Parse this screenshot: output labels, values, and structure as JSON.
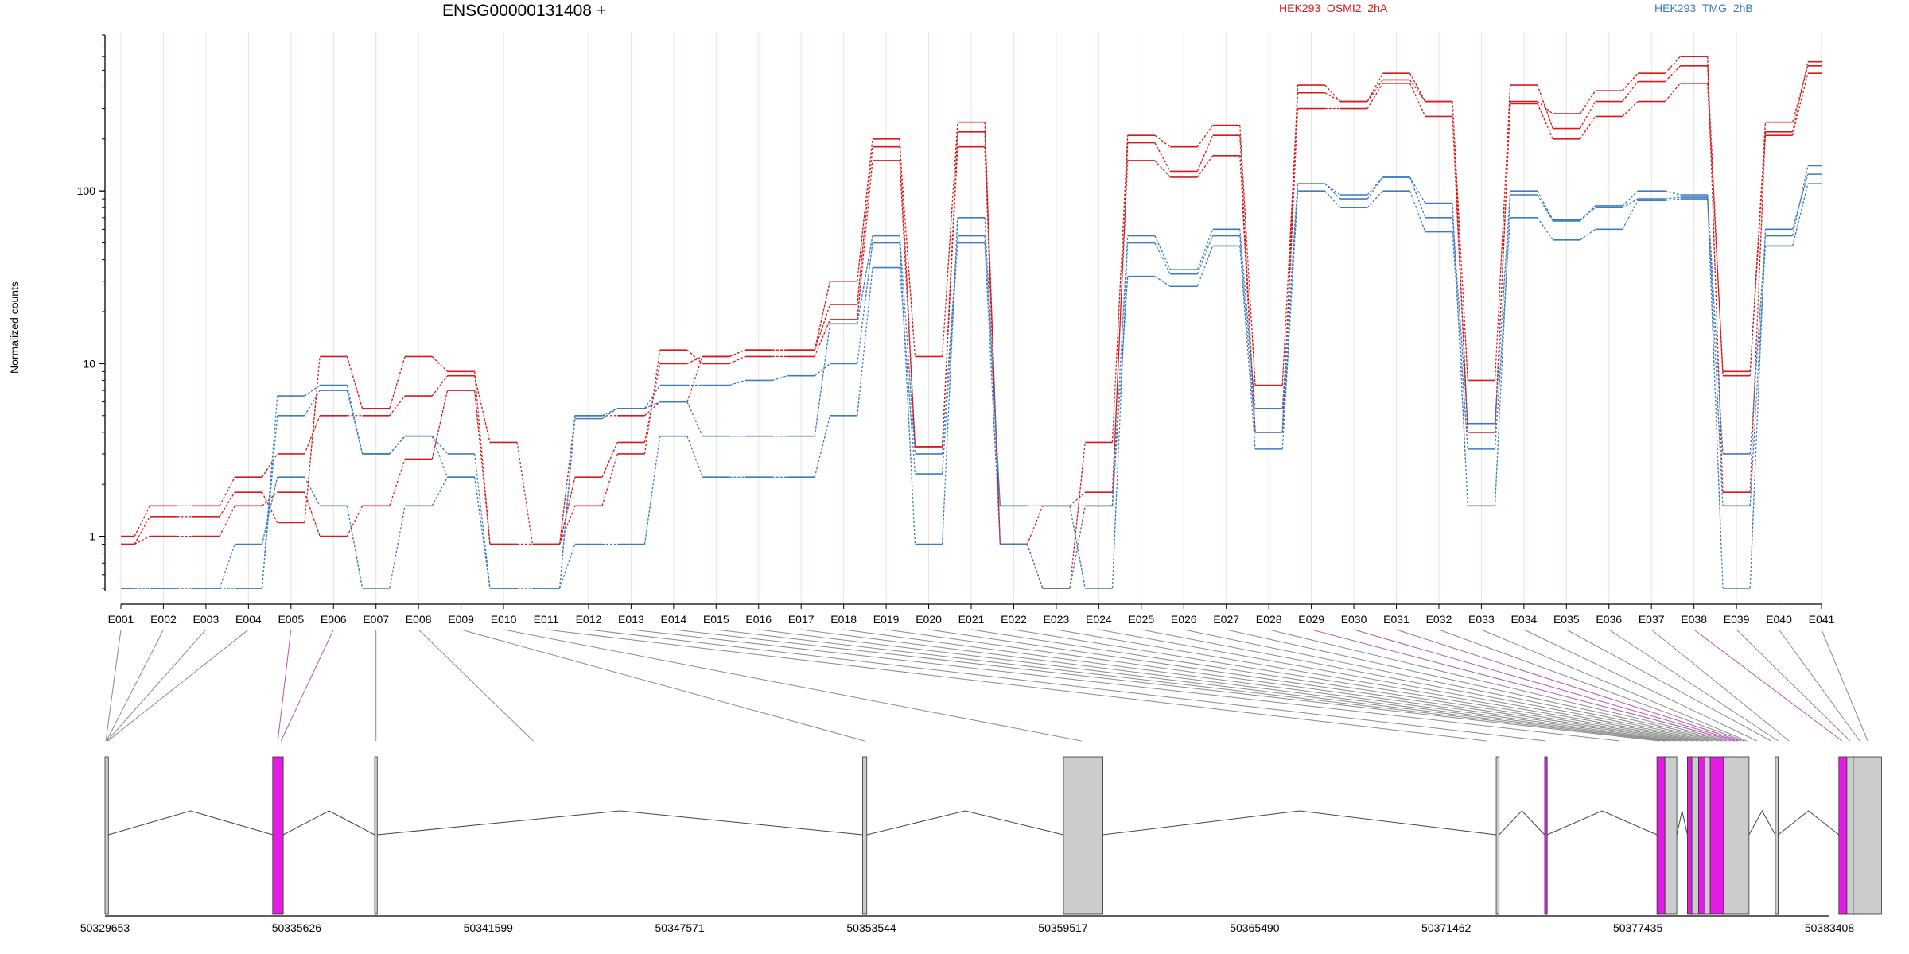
{
  "chart_data": {
    "type": "line",
    "title": "ENSG00000131408 +",
    "ylabel": "Normalized counts",
    "yscale": "log",
    "ylim": [
      0.5,
      800
    ],
    "yticks": [
      1,
      10,
      100
    ],
    "legend_position": "top",
    "categories": [
      "E001",
      "E002",
      "E003",
      "E004",
      "E005",
      "E006",
      "E007",
      "E008",
      "E009",
      "E010",
      "E011",
      "E012",
      "E013",
      "E014",
      "E015",
      "E016",
      "E017",
      "E018",
      "E019",
      "E020",
      "E021",
      "E022",
      "E023",
      "E024",
      "E025",
      "E026",
      "E027",
      "E028",
      "E029",
      "E030",
      "E031",
      "E032",
      "E033",
      "E034",
      "E035",
      "E036",
      "E037",
      "E038",
      "E039",
      "E040",
      "E041"
    ],
    "series": [
      {
        "name": "HEK293_OSMI2_2hA",
        "color": "#d7191c",
        "values": [
          1.0,
          1.5,
          1.5,
          2.2,
          3.0,
          5.0,
          5.0,
          6.5,
          8.5,
          3.5,
          0.9,
          2.2,
          3.5,
          10,
          11,
          12,
          12,
          22,
          180,
          11,
          250,
          0.9,
          0.5,
          3.5,
          210,
          180,
          240,
          7.5,
          370,
          330,
          480,
          330,
          8.0,
          410,
          230,
          330,
          430,
          530,
          8.5,
          250,
          530
        ]
      },
      {
        "name": "HEK293_OSMI2_2hA",
        "color": "#d7191c",
        "values": [
          0.9,
          1.0,
          1.0,
          1.5,
          1.8,
          1.0,
          1.5,
          2.8,
          7.0,
          0.9,
          0.9,
          1.5,
          3.0,
          12,
          10,
          11,
          11,
          18,
          150,
          3.3,
          180,
          0.9,
          1.5,
          1.8,
          150,
          120,
          160,
          4.0,
          300,
          300,
          420,
          270,
          4.0,
          320,
          200,
          270,
          330,
          420,
          9.0,
          210,
          480
        ]
      },
      {
        "name": "HEK293_OSMI2_2hA",
        "color": "#d7191c",
        "values": [
          0.9,
          1.3,
          1.3,
          1.8,
          1.2,
          11,
          5.5,
          11,
          9.0,
          0.9,
          0.9,
          5.0,
          5.0,
          6.0,
          11,
          12,
          12,
          30,
          200,
          3.3,
          220,
          0.9,
          0.5,
          1.5,
          190,
          130,
          210,
          4.0,
          410,
          330,
          440,
          330,
          4.0,
          330,
          280,
          380,
          480,
          600,
          1.8,
          220,
          560
        ]
      },
      {
        "name": "HEK293_TMG_2hB",
        "color": "#3b7bbf",
        "values": [
          0.5,
          0.5,
          0.5,
          0.5,
          5.0,
          7.0,
          3.0,
          3.8,
          3.0,
          0.5,
          0.5,
          5.0,
          5.5,
          7.5,
          7.5,
          8.0,
          8.5,
          10,
          50,
          0.9,
          70,
          1.5,
          1.5,
          0.5,
          50,
          33,
          55,
          4.0,
          110,
          95,
          120,
          85,
          1.5,
          95,
          67,
          82,
          100,
          95,
          3.0,
          55,
          140
        ]
      },
      {
        "name": "HEK293_TMG_2hB",
        "color": "#3b7bbf",
        "values": [
          0.5,
          0.5,
          0.5,
          0.9,
          2.2,
          1.5,
          0.5,
          1.5,
          2.2,
          0.5,
          0.5,
          0.9,
          0.9,
          3.8,
          2.2,
          2.2,
          2.2,
          5.0,
          36,
          2.3,
          50,
          0.9,
          0.5,
          1.5,
          32,
          28,
          48,
          3.2,
          100,
          80,
          100,
          58,
          3.2,
          70,
          52,
          60,
          88,
          90,
          1.5,
          48,
          110
        ]
      },
      {
        "name": "HEK293_TMG_2hB",
        "color": "#3b7bbf",
        "values": [
          0.5,
          0.5,
          0.5,
          0.5,
          6.5,
          7.5,
          3.0,
          3.8,
          2.2,
          0.5,
          0.5,
          4.8,
          5.5,
          6.0,
          3.8,
          3.8,
          3.8,
          17,
          55,
          3.0,
          55,
          1.5,
          1.5,
          1.5,
          55,
          35,
          60,
          5.5,
          110,
          90,
          120,
          70,
          4.5,
          100,
          68,
          80,
          90,
          92,
          0.5,
          60,
          125
        ]
      }
    ],
    "gene_model": {
      "coord_ticks": [
        "50329653",
        "50335626",
        "50341599",
        "50347571",
        "50353544",
        "50359517",
        "50365490",
        "50371462",
        "50377435",
        "50383408"
      ],
      "highlight_color": "#e31ce3",
      "exons": [
        {
          "start": 50329653,
          "end": 50329760,
          "highlight": false
        },
        {
          "start": 50334880,
          "end": 50335210,
          "highlight": true
        },
        {
          "start": 50338060,
          "end": 50338140,
          "highlight": false
        },
        {
          "start": 50353270,
          "end": 50353400,
          "highlight": false
        },
        {
          "start": 50359530,
          "end": 50360760,
          "highlight": false
        },
        {
          "start": 50373020,
          "end": 50373110,
          "highlight": false
        },
        {
          "start": 50374530,
          "end": 50374610,
          "highlight": true
        },
        {
          "start": 50378030,
          "end": 50378280,
          "highlight": true
        },
        {
          "start": 50378280,
          "end": 50378650,
          "highlight": false
        },
        {
          "start": 50378980,
          "end": 50379120,
          "highlight": true
        },
        {
          "start": 50379120,
          "end": 50379330,
          "highlight": false
        },
        {
          "start": 50379330,
          "end": 50379530,
          "highlight": true
        },
        {
          "start": 50379530,
          "end": 50379690,
          "highlight": false
        },
        {
          "start": 50379690,
          "end": 50380110,
          "highlight": true
        },
        {
          "start": 50380110,
          "end": 50380900,
          "highlight": false
        },
        {
          "start": 50381720,
          "end": 50381810,
          "highlight": false
        },
        {
          "start": 50383700,
          "end": 50383950,
          "highlight": true
        },
        {
          "start": 50383950,
          "end": 50384150,
          "highlight": false
        },
        {
          "start": 50384150,
          "end": 50385030,
          "highlight": false
        }
      ],
      "exon_map": [
        50329680,
        50329700,
        50329720,
        50329740,
        50335040,
        50335140,
        50338100,
        50343000,
        50353330,
        50360090,
        50372710,
        50374560,
        50376870,
        50378120,
        50378290,
        50378460,
        50378620,
        50378800,
        50378990,
        50379160,
        50379320,
        50379480,
        50379640,
        50379790,
        50379950,
        50380080,
        50380210,
        50380340,
        50380460,
        50380560,
        50380650,
        50380740,
        50380830,
        50381150,
        50381590,
        50381810,
        50382150,
        50383800,
        50384050,
        50384350,
        50384600
      ],
      "exon_map_highlight": [
        4,
        5,
        28,
        29,
        30,
        37
      ]
    }
  }
}
